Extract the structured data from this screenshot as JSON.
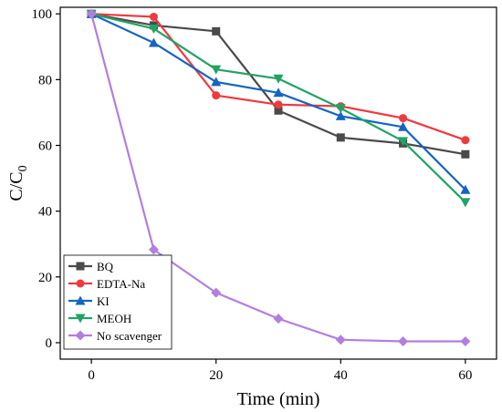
{
  "chart_data": {
    "type": "line",
    "xlabel": "Time (min)",
    "ylabel": {
      "main": "C/C",
      "sub": "0"
    },
    "xlim": [
      -5,
      65
    ],
    "ylim": [
      -5,
      102
    ],
    "xticks": [
      0,
      20,
      40,
      60
    ],
    "yticks": [
      0,
      20,
      40,
      60,
      80,
      100
    ],
    "xtick_labels": [
      "0",
      "20",
      "40",
      "60"
    ],
    "ytick_labels": [
      "0",
      "20",
      "40",
      "60",
      "80",
      "100"
    ],
    "legend_position": "bottom-left",
    "x": [
      0,
      10,
      20,
      30,
      40,
      50,
      60
    ],
    "series": [
      {
        "name": "BQ",
        "color": "#4a4a4a",
        "marker": "square",
        "values": [
          100,
          96.5,
          94.7,
          70.6,
          62.4,
          60.6,
          57.3
        ]
      },
      {
        "name": "EDTA-Na",
        "color": "#f0393e",
        "marker": "circle",
        "values": [
          100,
          99.1,
          75.2,
          72.4,
          71.9,
          68.3,
          61.6
        ]
      },
      {
        "name": "KI",
        "color": "#1565c0",
        "marker": "triangle-up",
        "values": [
          100,
          91.2,
          79.3,
          76.0,
          68.9,
          65.6,
          46.5
        ]
      },
      {
        "name": "MEOH",
        "color": "#21a366",
        "marker": "triangle-down",
        "values": [
          100,
          95.5,
          83.1,
          80.3,
          71.3,
          61.3,
          42.7
        ]
      },
      {
        "name": "No scavenger",
        "color": "#b27ee0",
        "marker": "diamond",
        "values": [
          100,
          28.3,
          15.2,
          7.3,
          0.9,
          0.4,
          0.4
        ]
      }
    ]
  }
}
